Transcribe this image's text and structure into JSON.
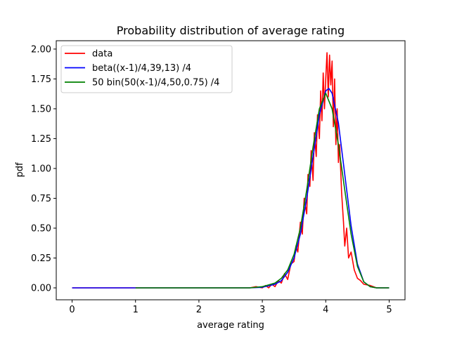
{
  "chart_data": {
    "type": "line",
    "title": "Probability distribution of average rating",
    "xlabel": "average rating",
    "ylabel": "pdf",
    "xlim": [
      -0.25,
      5.25
    ],
    "ylim": [
      -0.1,
      2.07
    ],
    "x_ticks": [
      0,
      1,
      2,
      3,
      4,
      5
    ],
    "x_tick_labels": [
      "0",
      "1",
      "2",
      "3",
      "4",
      "5"
    ],
    "y_ticks": [
      0.0,
      0.25,
      0.5,
      0.75,
      1.0,
      1.25,
      1.5,
      1.75,
      2.0
    ],
    "y_tick_labels": [
      "0.00",
      "0.25",
      "0.50",
      "0.75",
      "1.00",
      "1.25",
      "1.50",
      "1.75",
      "2.00"
    ],
    "grid": false,
    "legend_position": "top-left",
    "series": [
      {
        "name": "data",
        "color": "#ff0000",
        "x": [
          0,
          1,
          2,
          2.8,
          2.9,
          3.0,
          3.05,
          3.1,
          3.15,
          3.2,
          3.25,
          3.3,
          3.35,
          3.4,
          3.45,
          3.5,
          3.53,
          3.56,
          3.6,
          3.63,
          3.66,
          3.7,
          3.72,
          3.75,
          3.77,
          3.8,
          3.82,
          3.85,
          3.87,
          3.9,
          3.92,
          3.94,
          3.96,
          3.98,
          4.0,
          4.02,
          4.04,
          4.06,
          4.08,
          4.1,
          4.12,
          4.14,
          4.16,
          4.18,
          4.2,
          4.22,
          4.25,
          4.28,
          4.3,
          4.33,
          4.36,
          4.4,
          4.45,
          4.5,
          4.55,
          4.6,
          4.7,
          4.8,
          5.0
        ],
        "values": [
          0,
          0,
          0,
          0.0,
          0.01,
          0.0,
          0.02,
          0.0,
          0.03,
          0.01,
          0.06,
          0.04,
          0.12,
          0.07,
          0.2,
          0.22,
          0.35,
          0.3,
          0.55,
          0.45,
          0.75,
          0.62,
          0.95,
          0.85,
          1.15,
          0.9,
          1.3,
          1.1,
          1.45,
          1.25,
          1.65,
          1.4,
          1.8,
          1.5,
          1.75,
          1.97,
          1.6,
          1.95,
          1.7,
          1.9,
          1.35,
          1.75,
          1.2,
          1.5,
          1.05,
          1.2,
          0.8,
          0.55,
          0.35,
          0.5,
          0.25,
          0.3,
          0.15,
          0.08,
          0.06,
          0.03,
          0.02,
          0.0,
          0.0
        ]
      },
      {
        "name": "beta((x-1)/4,39,13) /4",
        "color": "#0000ff",
        "x": [
          0,
          1,
          2,
          2.8,
          3.0,
          3.2,
          3.3,
          3.4,
          3.5,
          3.6,
          3.7,
          3.8,
          3.9,
          4.0,
          4.05,
          4.1,
          4.2,
          4.3,
          4.4,
          4.5,
          4.6,
          4.7,
          4.8,
          5.0
        ],
        "values": [
          0,
          0,
          0,
          0.0,
          0.005,
          0.03,
          0.06,
          0.13,
          0.25,
          0.45,
          0.75,
          1.1,
          1.45,
          1.65,
          1.67,
          1.63,
          1.38,
          0.95,
          0.52,
          0.2,
          0.05,
          0.01,
          0.0,
          0.0
        ]
      },
      {
        "name": "50 bin(50(x-1)/4,50,0.75) /4",
        "color": "#008000",
        "x": [
          1,
          2,
          2.8,
          3.0,
          3.2,
          3.3,
          3.4,
          3.5,
          3.6,
          3.7,
          3.8,
          3.9,
          4.0,
          4.1,
          4.2,
          4.3,
          4.4,
          4.5,
          4.6,
          4.7,
          4.8,
          5.0
        ],
        "values": [
          0,
          0,
          0.0,
          0.01,
          0.04,
          0.08,
          0.15,
          0.28,
          0.5,
          0.82,
          1.18,
          1.5,
          1.63,
          1.5,
          1.2,
          0.82,
          0.45,
          0.18,
          0.05,
          0.01,
          0.0,
          0.0
        ]
      }
    ]
  }
}
